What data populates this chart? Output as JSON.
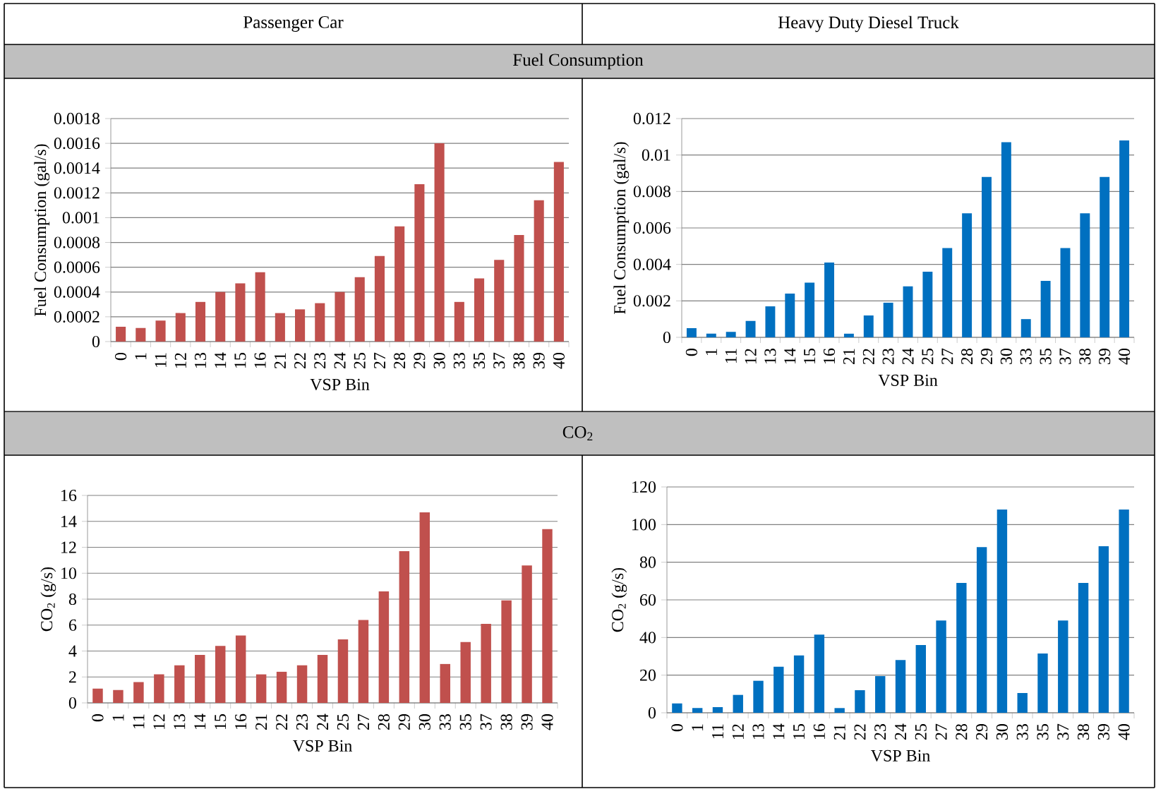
{
  "chart_data": [
    {
      "type": "bar",
      "title": "Passenger Car",
      "subtitle": "Fuel Consumption",
      "xlabel": "VSP Bin",
      "ylabel": "Fuel Consumption (gal/s)",
      "categories": [
        "0",
        "1",
        "11",
        "12",
        "13",
        "14",
        "15",
        "16",
        "21",
        "22",
        "23",
        "24",
        "25",
        "27",
        "28",
        "29",
        "30",
        "33",
        "35",
        "37",
        "38",
        "39",
        "40"
      ],
      "values": [
        0.00012,
        0.00011,
        0.00017,
        0.00023,
        0.00032,
        0.0004,
        0.00047,
        0.00056,
        0.00023,
        0.00026,
        0.00031,
        0.0004,
        0.00052,
        0.00069,
        0.00093,
        0.00127,
        0.0016,
        0.00032,
        0.00051,
        0.00066,
        0.00086,
        0.00114,
        0.00145
      ],
      "color": "#c0504d",
      "ylim": [
        0,
        0.0018
      ],
      "yticks": [
        0,
        0.0002,
        0.0004,
        0.0006,
        0.0008,
        0.001,
        0.0012,
        0.0014,
        0.0016,
        0.0018
      ],
      "grid": "y"
    },
    {
      "type": "bar",
      "title": "Heavy Duty Diesel Truck",
      "xlabel": "VSP Bin",
      "ylabel": "Fuel Consumption (gal/s)",
      "categories": [
        "0",
        "1",
        "11",
        "12",
        "13",
        "14",
        "15",
        "16",
        "21",
        "22",
        "23",
        "24",
        "25",
        "27",
        "28",
        "29",
        "30",
        "33",
        "35",
        "37",
        "38",
        "39",
        "40"
      ],
      "values": [
        0.0005,
        0.0002,
        0.0003,
        0.0009,
        0.0017,
        0.0024,
        0.003,
        0.0041,
        0.0002,
        0.0012,
        0.0019,
        0.0028,
        0.0036,
        0.0049,
        0.0068,
        0.0088,
        0.0107,
        0.001,
        0.0031,
        0.0049,
        0.0068,
        0.0088,
        0.0108
      ],
      "color": "#0070c0",
      "ylim": [
        0,
        0.012
      ],
      "yticks": [
        0,
        0.002,
        0.004,
        0.006,
        0.008,
        0.01,
        0.012
      ],
      "grid": "y"
    },
    {
      "type": "bar",
      "subtitle": "CO$_{2}$",
      "xlabel": "VSP Bin",
      "ylabel": "CO$_{2}$ (g/s)",
      "categories": [
        "0",
        "1",
        "11",
        "12",
        "13",
        "14",
        "15",
        "16",
        "21",
        "22",
        "23",
        "24",
        "25",
        "27",
        "28",
        "29",
        "30",
        "33",
        "35",
        "37",
        "38",
        "39",
        "40"
      ],
      "values": [
        1.1,
        1.0,
        1.6,
        2.2,
        2.9,
        3.7,
        4.4,
        5.2,
        2.2,
        2.4,
        2.9,
        3.7,
        4.9,
        6.4,
        8.6,
        11.7,
        14.7,
        3.0,
        4.7,
        6.1,
        7.9,
        10.6,
        13.4
      ],
      "color": "#c0504d",
      "ylim": [
        0,
        16
      ],
      "yticks": [
        0,
        2,
        4,
        6,
        8,
        10,
        12,
        14,
        16
      ],
      "grid": "y"
    },
    {
      "type": "bar",
      "xlabel": "VSP Bin",
      "ylabel": "CO$_{2}$ (g/s)",
      "categories": [
        "0",
        "1",
        "11",
        "12",
        "13",
        "14",
        "15",
        "16",
        "21",
        "22",
        "23",
        "24",
        "25",
        "27",
        "28",
        "29",
        "30",
        "33",
        "35",
        "37",
        "38",
        "39",
        "40"
      ],
      "values": [
        5,
        2.5,
        3,
        9.5,
        17,
        24.5,
        30.5,
        41.5,
        2.5,
        12,
        19.5,
        28,
        36,
        49,
        69,
        88,
        108,
        10.5,
        31.5,
        49,
        69,
        88.5,
        108
      ],
      "color": "#0070c0",
      "ylim": [
        0,
        120
      ],
      "yticks": [
        0,
        20,
        40,
        60,
        80,
        100,
        120
      ],
      "grid": "y"
    }
  ]
}
